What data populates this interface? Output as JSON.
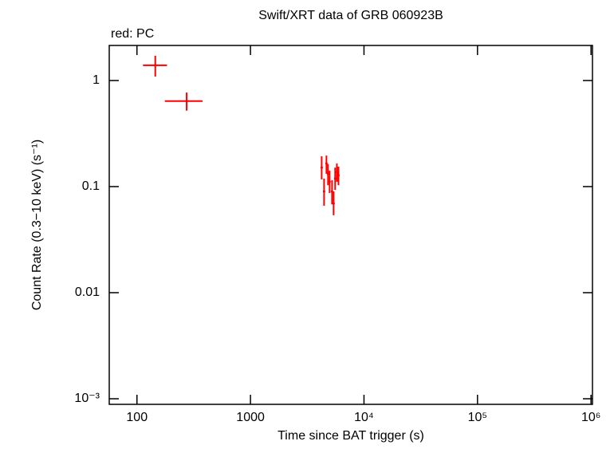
{
  "chart_data": {
    "type": "scatter",
    "title": "Swift/XRT data of GRB 060923B",
    "subtitle": "red: PC",
    "x_label": "Time since BAT trigger (s)",
    "y_label": "Count Rate (0.3−10 keV) (s⁻¹)",
    "xlog": true,
    "ylog": true,
    "xlim": [
      57,
      1030000
    ],
    "ylim": [
      0.000886,
      2.14
    ],
    "xticks": [
      100,
      1000,
      {
        "value": 10000,
        "label": "10⁴"
      },
      {
        "value": 100000,
        "label": "10⁵"
      },
      {
        "value": 1000000,
        "label": "10⁶"
      }
    ],
    "yticks": [
      {
        "value": 0.001,
        "label": "10⁻³"
      },
      0.01,
      0.1,
      1
    ],
    "series": [
      {
        "name": "PC",
        "color": "#ff0000",
        "x": [
          145,
          274,
          4240,
          4450,
          4670,
          4820,
          4980,
          5230,
          5400,
          5570,
          5770,
          5960
        ],
        "xmin": [
          113,
          176,
          4160,
          4360,
          4580,
          4720,
          4880,
          5130,
          5290,
          5460,
          5650,
          5840
        ],
        "xmax": [
          184,
          378,
          4320,
          4540,
          4760,
          4920,
          5080,
          5330,
          5510,
          5680,
          5890,
          6080
        ],
        "y": [
          1.39,
          0.64,
          0.151,
          0.09,
          0.165,
          0.132,
          0.111,
          0.09,
          0.0695,
          0.119,
          0.137,
          0.128
        ],
        "ymin": [
          1.09,
          0.52,
          0.117,
          0.066,
          0.132,
          0.103,
          0.087,
          0.068,
          0.0537,
          0.093,
          0.111,
          0.103
        ],
        "ymax": [
          1.71,
          0.77,
          0.193,
          0.119,
          0.196,
          0.163,
          0.141,
          0.115,
          0.09,
          0.151,
          0.165,
          0.154
        ]
      }
    ]
  }
}
